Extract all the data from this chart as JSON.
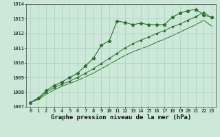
{
  "title": "Graphe pression niveau de la mer (hPa)",
  "bg_color": "#cce8d8",
  "grid_color": "#aacfbe",
  "line_color": "#2d6e2d",
  "x_values": [
    0,
    1,
    2,
    3,
    4,
    5,
    6,
    7,
    8,
    9,
    10,
    11,
    12,
    13,
    14,
    15,
    16,
    17,
    18,
    19,
    20,
    21,
    22,
    23
  ],
  "line1": [
    1007.3,
    1007.6,
    1008.1,
    1008.45,
    1008.7,
    1009.0,
    1009.3,
    1009.8,
    1010.3,
    1011.2,
    1011.5,
    1012.85,
    1012.75,
    1012.6,
    1012.7,
    1012.6,
    1012.6,
    1012.6,
    1013.1,
    1013.4,
    1013.55,
    1013.65,
    1013.25,
    1013.1
  ],
  "line2": [
    1007.3,
    1007.55,
    1008.0,
    1008.3,
    1008.55,
    1008.75,
    1009.0,
    1009.3,
    1009.6,
    1009.95,
    1010.3,
    1010.65,
    1011.0,
    1011.3,
    1011.55,
    1011.75,
    1012.0,
    1012.2,
    1012.45,
    1012.65,
    1012.9,
    1013.15,
    1013.45,
    1013.05
  ],
  "line3": [
    1007.3,
    1007.5,
    1007.85,
    1008.15,
    1008.4,
    1008.6,
    1008.8,
    1009.05,
    1009.3,
    1009.6,
    1009.9,
    1010.2,
    1010.5,
    1010.75,
    1010.95,
    1011.15,
    1011.4,
    1011.6,
    1011.85,
    1012.1,
    1012.35,
    1012.6,
    1012.9,
    1012.5
  ],
  "ylim": [
    1007.0,
    1014.0
  ],
  "yticks": [
    1007,
    1008,
    1009,
    1010,
    1011,
    1012,
    1013,
    1014
  ],
  "xticks": [
    0,
    1,
    2,
    3,
    4,
    5,
    6,
    7,
    8,
    9,
    10,
    11,
    12,
    13,
    14,
    15,
    16,
    17,
    18,
    19,
    20,
    21,
    22,
    23
  ],
  "title_fontsize": 6.5,
  "tick_fontsize": 5.0
}
